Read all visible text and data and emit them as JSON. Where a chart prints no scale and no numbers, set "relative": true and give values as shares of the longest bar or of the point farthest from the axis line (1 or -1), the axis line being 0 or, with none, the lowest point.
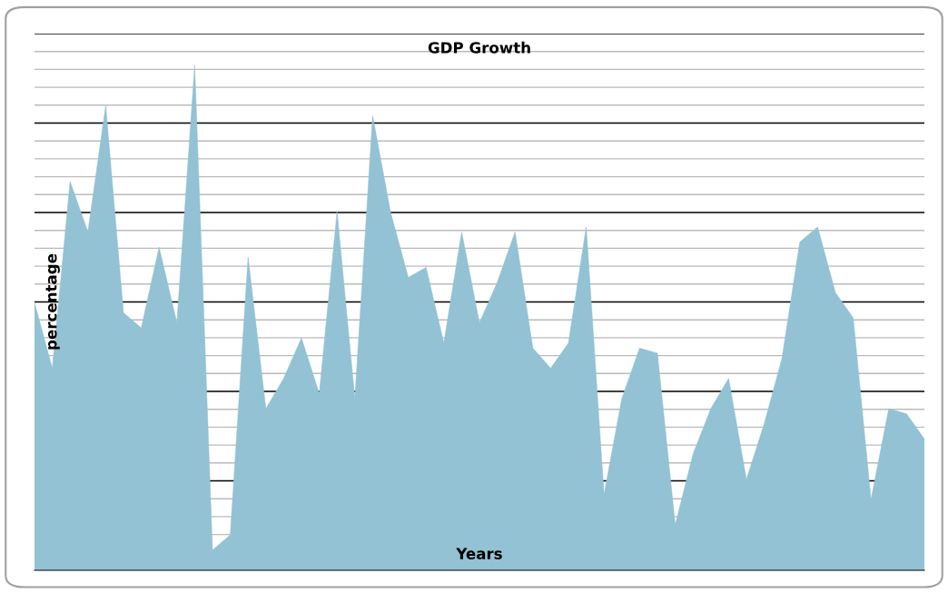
{
  "chart_data": {
    "type": "area",
    "title": "GDP Growth",
    "xlabel": "Years",
    "ylabel": "percentage",
    "relative": true,
    "grid": "y",
    "legend": false,
    "categories": [
      null,
      null,
      null,
      null,
      null,
      null,
      null,
      null,
      null,
      null,
      null,
      null,
      null,
      null,
      null,
      null,
      null,
      null,
      null,
      null,
      null,
      null,
      null,
      null,
      null,
      null,
      null,
      null,
      null,
      null,
      null,
      null,
      null,
      null,
      null,
      null,
      null,
      null,
      null,
      null,
      null,
      null,
      null,
      null,
      null,
      null,
      null,
      null,
      null,
      null,
      null
    ],
    "series": [
      {
        "color": "#92c2d3",
        "values": [
          0.53,
          0.4,
          0.77,
          0.67,
          0.92,
          0.51,
          0.48,
          0.64,
          0.49,
          1,
          0.04,
          0.07,
          0.62,
          0.32,
          0.38,
          0.46,
          0.35,
          0.71,
          0.34,
          0.9,
          0.71,
          0.58,
          0.6,
          0.45,
          0.67,
          0.49,
          0.57,
          0.67,
          0.44,
          0.4,
          0.45,
          0.68,
          0.15,
          0.34,
          0.44,
          0.43,
          0.09,
          0.23,
          0.32,
          0.38,
          0.18,
          0.29,
          0.42,
          0.65,
          0.68,
          0.55,
          0.5,
          0.14,
          0.32,
          0.31,
          0.26
        ]
      }
    ]
  }
}
